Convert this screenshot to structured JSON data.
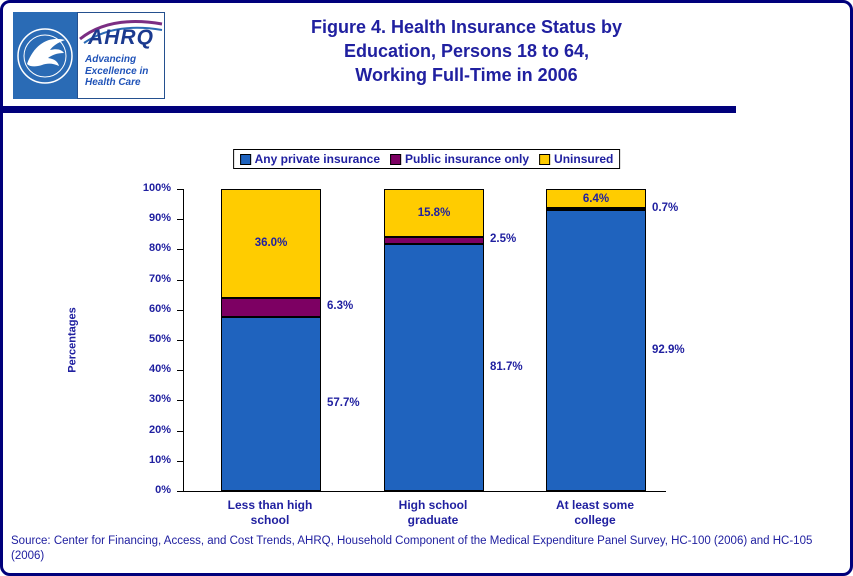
{
  "header": {
    "title_lines": [
      "Figure 4. Health Insurance Status by",
      "Education, Persons 18 to 64,",
      "Working Full-Time in 2006"
    ],
    "ahrq": {
      "name": "AHRQ",
      "tagline": [
        "Advancing",
        "Excellence in",
        "Health Care"
      ]
    }
  },
  "colors": {
    "page_border": "#00007B",
    "header_rule": "#00007B",
    "navy_text": "#2020A0"
  },
  "chart_data": {
    "type": "bar",
    "stacked": true,
    "title": "Figure 4. Health Insurance Status by Education, Persons 18 to 64, Working Full-Time in 2006",
    "categories": [
      "Less than high school",
      "High school graduate",
      "At least some college"
    ],
    "series": [
      {
        "name": "Any private insurance",
        "color": "#1F63BE",
        "values": [
          57.7,
          81.7,
          92.9
        ],
        "labels": [
          "57.7%",
          "81.7%",
          "92.9%"
        ],
        "label_placement": "right"
      },
      {
        "name": "Public insurance only",
        "color": "#7D0063",
        "values": [
          6.3,
          2.5,
          0.7
        ],
        "labels": [
          "6.3%",
          "2.5%",
          "0.7%"
        ],
        "label_placement": "right"
      },
      {
        "name": "Uninsured",
        "color": "#FFCC00",
        "values": [
          36.0,
          15.8,
          6.4
        ],
        "labels": [
          "36.0%",
          "15.8%",
          "6.4%"
        ],
        "label_placement": "inside"
      }
    ],
    "xlabel": "",
    "ylabel": "Percentages",
    "ylim": [
      0,
      100
    ],
    "yticks": [
      "0%",
      "10%",
      "20%",
      "30%",
      "40%",
      "50%",
      "60%",
      "70%",
      "80%",
      "90%",
      "100%"
    ],
    "legend_position": "top",
    "grid": false
  },
  "source": "Source: Center for Financing, Access, and Cost Trends, AHRQ, Household Component of the Medical Expenditure Panel Survey, HC-100 (2006) and HC-105 (2006)"
}
